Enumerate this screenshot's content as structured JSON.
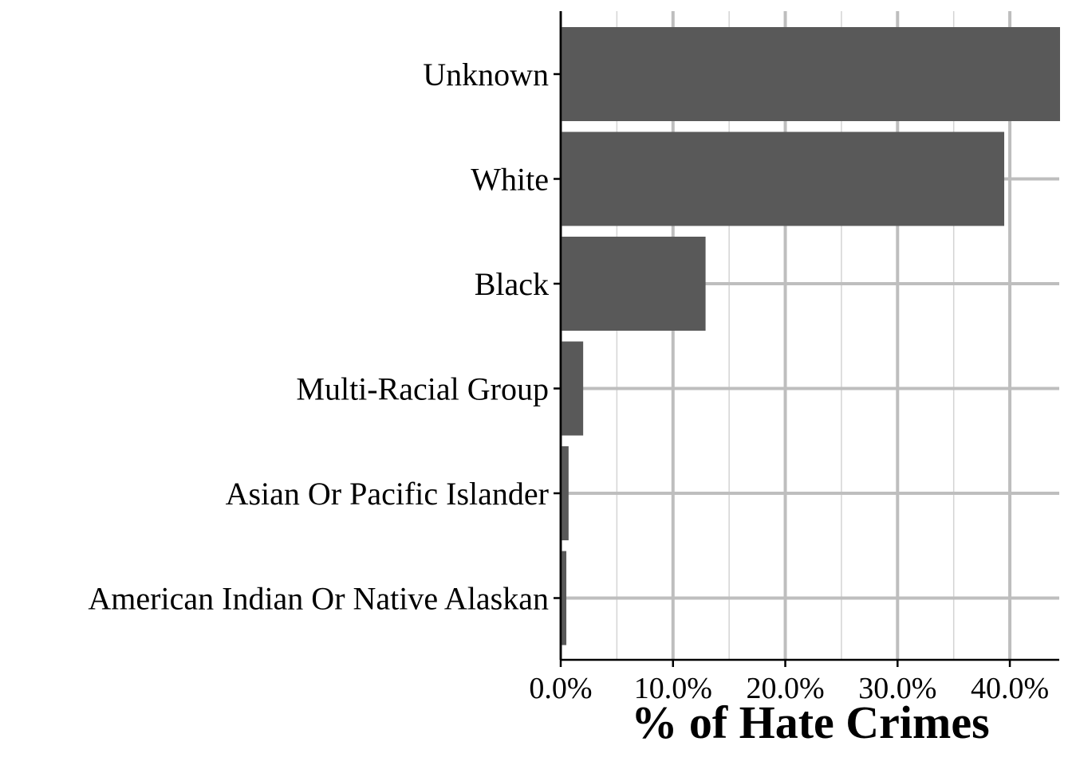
{
  "chart_data": {
    "type": "bar",
    "orientation": "horizontal",
    "categories": [
      "Unknown",
      "White",
      "Black",
      "Multi-Racial Group",
      "Asian Or Pacific Islander",
      "American Indian Or Native Alaskan"
    ],
    "values": [
      44.5,
      39.5,
      12.9,
      2.0,
      0.7,
      0.5
    ],
    "xlabel": "% of Hate Crimes",
    "ylabel": "",
    "xlim": [
      0,
      44.4
    ],
    "x_ticks": [
      0,
      10,
      20,
      30,
      40
    ],
    "x_tick_labels": [
      "0.0%",
      "10.0%",
      "20.0%",
      "30.0%",
      "40.0%"
    ],
    "grid": true,
    "legend": "none",
    "colors": {
      "bar": "#595959",
      "grid_major": "#bebebe",
      "grid_minor": "#d4d4d4",
      "axis": "#000000",
      "background": "#ffffff"
    }
  }
}
